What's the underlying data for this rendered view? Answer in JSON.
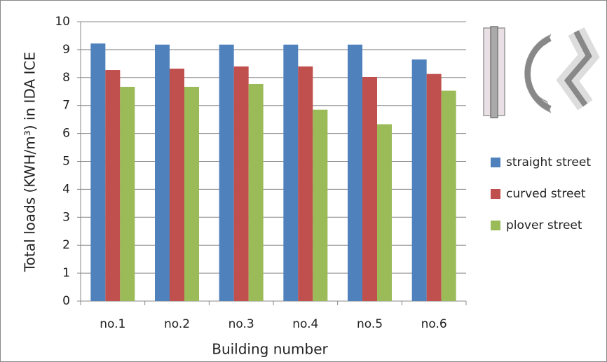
{
  "chart_data": {
    "type": "bar",
    "x_label": "Building number",
    "y_label": "Total loads (KWH/m³) in IDA ICE",
    "categories": [
      "no.1",
      "no.2",
      "no.3",
      "no.4",
      "no.5",
      "no.6"
    ],
    "series": [
      {
        "name": "straight street",
        "color": "#4f81bd",
        "values": [
          9.22,
          9.18,
          9.18,
          9.18,
          9.18,
          8.65
        ]
      },
      {
        "name": "curved street",
        "color": "#c0504d",
        "values": [
          8.27,
          8.32,
          8.4,
          8.4,
          8.02,
          8.13
        ]
      },
      {
        "name": "plover street",
        "color": "#9bbb59",
        "values": [
          7.67,
          7.67,
          7.77,
          6.85,
          6.33,
          7.53
        ]
      }
    ],
    "ylim": [
      0,
      10
    ],
    "yticks": [
      0,
      1,
      2,
      3,
      4,
      5,
      6,
      7,
      8,
      9,
      10
    ],
    "grid": true,
    "legend": "right"
  }
}
